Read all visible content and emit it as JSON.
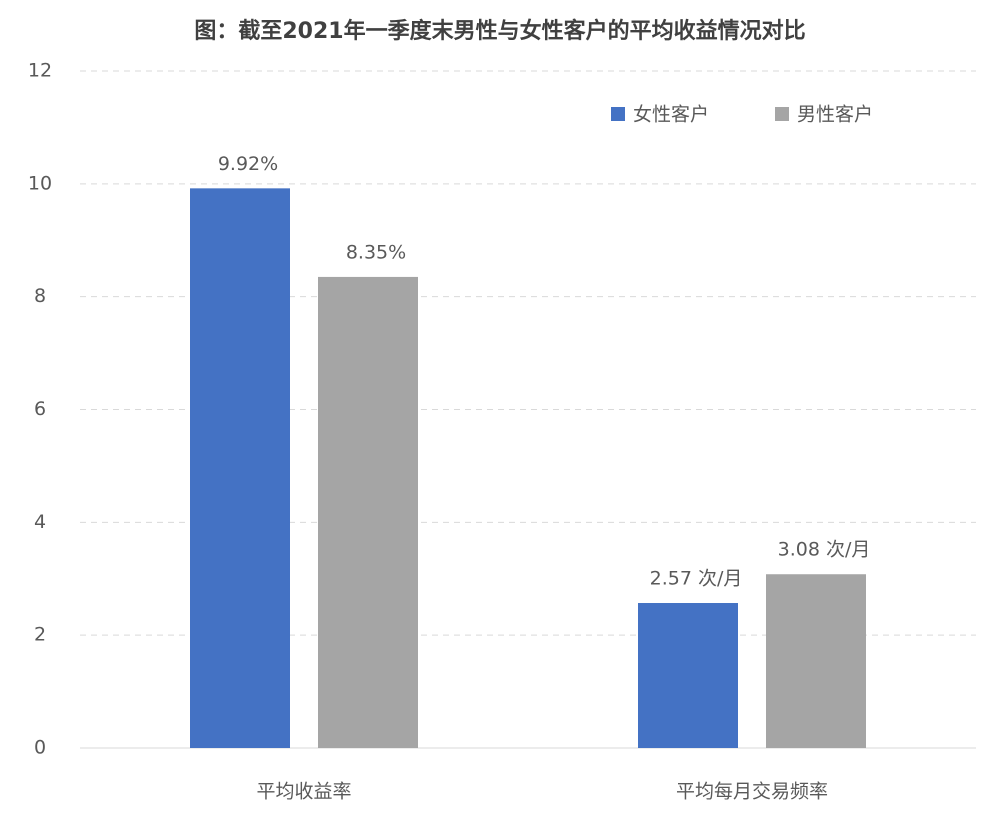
{
  "chart_data": {
    "type": "bar",
    "title": "图：截至2021年一季度末男性与女性客户的平均收益情况对比",
    "categories": [
      "平均收益率",
      "平均每月交易频率"
    ],
    "series": [
      {
        "name": "女性客户",
        "color": "#4472c4",
        "values": [
          9.92,
          2.57
        ],
        "value_labels": [
          "9.92%",
          "2.57 次/月"
        ]
      },
      {
        "name": "男性客户",
        "color": "#a5a5a5",
        "values": [
          8.35,
          3.08
        ],
        "value_labels": [
          "8.35%",
          "3.08 次/月"
        ]
      }
    ],
    "ylim": [
      0,
      12
    ],
    "yticks": [
      0,
      2,
      4,
      6,
      8,
      10,
      12
    ],
    "grid": true,
    "legend": "top-right"
  }
}
